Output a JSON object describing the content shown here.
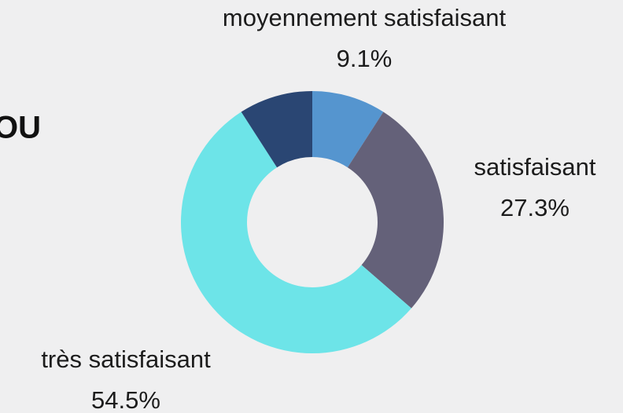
{
  "heading": "OU",
  "chart_data": {
    "type": "donut",
    "categories": [
      "moyennement satisfaisant",
      "satisfaisant",
      "très satisfaisant",
      null
    ],
    "values": [
      9.1,
      27.3,
      54.5,
      9.1
    ],
    "value_labels": [
      "9.1%",
      "27.3%",
      "54.5%",
      null
    ],
    "colors": [
      "#5595cf",
      "#646179",
      "#6de4e8",
      "#2a4673"
    ]
  }
}
